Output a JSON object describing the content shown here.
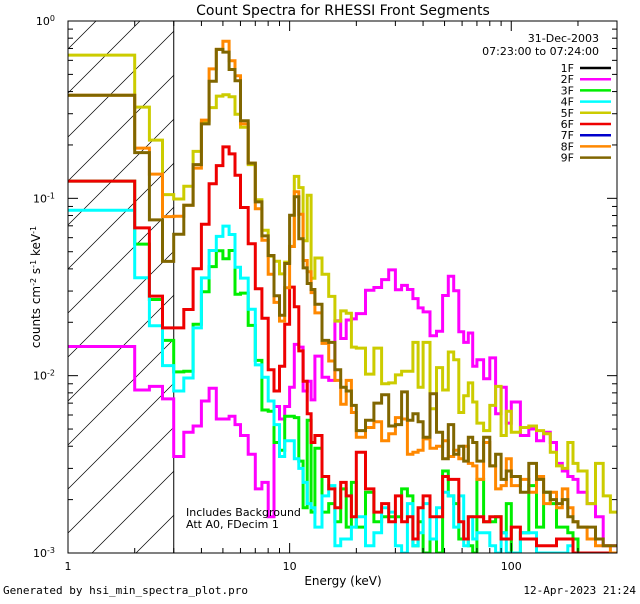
{
  "chart_data": {
    "type": "line",
    "title": "Count Spectra for RHESSI Front Segments",
    "xlabel": "Energy (keV)",
    "ylabel_base": "counts cm",
    "ylabel_exp1": "-2",
    "ylabel_mid": " s",
    "ylabel_exp2": "-1",
    "ylabel_tail": " keV",
    "ylabel_exp3": "-1",
    "xscale": "log",
    "yscale": "log",
    "xlim": [
      1,
      300
    ],
    "ylim": [
      0.001,
      1
    ],
    "x_ticks": [
      {
        "value": 1,
        "label": "1"
      },
      {
        "value": 10,
        "label": "10"
      },
      {
        "value": 100,
        "label": "100"
      }
    ],
    "y_ticks": [
      {
        "value": 0.001,
        "base": "10",
        "exp": "-3"
      },
      {
        "value": 0.01,
        "base": "10",
        "exp": "-2"
      },
      {
        "value": 0.1,
        "base": "10",
        "exp": "-1"
      },
      {
        "value": 1,
        "base": "10",
        "exp": "0"
      }
    ],
    "date": "31-Dec-2003",
    "time_range": "07:23:00 to 07:24:00",
    "annotation_lines": [
      "Includes Background",
      "Att A0, FDecim 1"
    ],
    "hatched_region_max_energy": 3,
    "energy_bins": [
      1.0,
      1.33,
      1.67,
      2.0,
      2.33,
      2.67,
      3.0,
      3.33,
      3.67,
      4.0,
      4.33,
      4.67,
      5.0,
      5.33,
      5.67,
      6.0,
      6.5,
      7.0,
      7.5,
      8.0,
      8.5,
      9.0,
      9.5,
      10.0,
      10.5,
      11.0,
      11.5,
      12.0,
      12.5,
      13.0,
      14.0,
      15.0,
      16.0,
      17.0,
      18.0,
      19.0,
      20.0,
      22.0,
      24.0,
      26.0,
      28.0,
      30.0,
      32.0,
      34.0,
      36.0,
      38.0,
      40.0,
      43.0,
      46.0,
      49.0,
      52.0,
      55.0,
      58.0,
      61.0,
      64.0,
      67.0,
      70.0,
      75.0,
      80.0,
      85.0,
      90.0,
      95.0,
      100.0,
      110.0,
      120.0,
      130.0,
      140.0,
      150.0,
      160.0,
      170.0,
      180.0,
      190.0,
      200.0,
      220.0,
      240.0,
      260.0,
      280.0,
      300.0
    ],
    "series": [
      {
        "name": "1F",
        "color": "#000000",
        "values": []
      },
      {
        "name": "2F",
        "color": "#ff00ff",
        "values": [
          0.0146,
          0.0146,
          0.0146,
          0.0083,
          0.0087,
          0.0074,
          0.0035,
          0.0048,
          0.0052,
          0.0072,
          0.0085,
          0.0057,
          0.0057,
          0.0059,
          0.0053,
          0.0046,
          0.0036,
          0.0023,
          0.0025,
          0.0016,
          0.0067,
          0.0057,
          0.0067,
          0.0086,
          0.015,
          0.0145,
          0.0082,
          0.0093,
          0.0073,
          0.0129,
          0.0098,
          0.0094,
          0.0204,
          0.0162,
          0.0206,
          0.0209,
          0.0224,
          0.0303,
          0.0314,
          0.0348,
          0.0395,
          0.0305,
          0.0323,
          0.0306,
          0.0272,
          0.0241,
          0.0229,
          0.0168,
          0.0178,
          0.0283,
          0.0364,
          0.0301,
          0.0177,
          0.0154,
          0.0174,
          0.0113,
          0.0123,
          0.0096,
          0.0126,
          0.0061,
          0.0086,
          0.0054,
          0.0071,
          0.0046,
          0.005,
          0.0043,
          0.0048,
          0.0042,
          0.0032,
          0.0029,
          0.0027,
          0.0026,
          0.0022,
          0.0019,
          0.0016,
          0.0011,
          0.0011
        ]
      },
      {
        "name": "3F",
        "color": "#00ee00",
        "values": [
          0.125,
          0.125,
          0.125,
          0.0552,
          0.0269,
          0.0158,
          0.0105,
          0.0106,
          0.0195,
          0.0297,
          0.0412,
          0.0506,
          0.0456,
          0.0508,
          0.0288,
          0.0292,
          0.0192,
          0.0122,
          0.0064,
          0.0063,
          0.0042,
          0.0038,
          0.0059,
          0.0059,
          0.0058,
          0.0033,
          0.0018,
          0.0056,
          0.0017,
          0.0039,
          0.0017,
          0.0019,
          0.0015,
          0.0023,
          0.0014,
          0.0025,
          0.0014,
          0.0022,
          0.0015,
          0.0016,
          0.0016,
          0.0016,
          0.0023,
          0.0021,
          0.0011,
          0.0015,
          0.001,
          0.0012,
          0.001,
          0.0029,
          0.0021,
          0.0019,
          0.0012,
          0.0012,
          0.0011,
          0.001,
          0.0026,
          0.0015,
          0.0015,
          0.0016,
          0.0013,
          0.0019,
          0.001,
          0.0013,
          0.0024,
          0.0014,
          0.0022,
          0.0019,
          0.0014,
          0.0014,
          0.0013,
          0.0012,
          0.001,
          0.001,
          0.001,
          0.001,
          0.001
        ]
      },
      {
        "name": "4F",
        "color": "#00ffff",
        "values": [
          0.0857,
          0.0857,
          0.0857,
          0.0357,
          0.0191,
          0.0114,
          0.0082,
          0.0097,
          0.0186,
          0.0356,
          0.0508,
          0.061,
          0.0697,
          0.0625,
          0.0409,
          0.0355,
          0.0237,
          0.0115,
          0.0098,
          0.0072,
          0.0053,
          0.0035,
          0.0043,
          0.0043,
          0.0034,
          0.003,
          0.0025,
          0.0019,
          0.0018,
          0.0014,
          0.0021,
          0.0024,
          0.0011,
          0.0012,
          0.0012,
          0.0014,
          0.0016,
          0.0011,
          0.0013,
          0.0018,
          0.0017,
          0.0011,
          0.001,
          0.0019,
          0.0011,
          0.0013,
          0.0019,
          0.0012,
          0.0018,
          0.0022,
          0.0021,
          0.0014,
          0.0021,
          0.0011,
          0.0016,
          0.0012,
          0.0013,
          0.0013,
          0.0011,
          0.001,
          0.0013,
          0.001,
          0.001,
          0.0013,
          0.0013,
          0.001,
          0.001,
          0.001,
          0.001,
          0.001,
          0.0011,
          0.001,
          0.001,
          0.001,
          0.001,
          0.001,
          0.001
        ]
      },
      {
        "name": "5F",
        "color": "#cccc00",
        "values": [
          0.642,
          0.642,
          0.642,
          0.327,
          0.213,
          0.105,
          0.0992,
          0.117,
          0.184,
          0.268,
          0.325,
          0.377,
          0.384,
          0.374,
          0.298,
          0.252,
          0.155,
          0.0982,
          0.066,
          0.0471,
          0.0442,
          0.0375,
          0.0437,
          0.0536,
          0.133,
          0.115,
          0.0577,
          0.104,
          0.0354,
          0.0461,
          0.0373,
          0.028,
          0.0203,
          0.0232,
          0.0225,
          0.0145,
          0.0143,
          0.0102,
          0.0143,
          0.009,
          0.0091,
          0.0101,
          0.0106,
          0.0106,
          0.0154,
          0.0086,
          0.0154,
          0.0065,
          0.0111,
          0.0083,
          0.0136,
          0.0123,
          0.0062,
          0.0077,
          0.0091,
          0.0071,
          0.0054,
          0.0049,
          0.0068,
          0.0087,
          0.0046,
          0.0063,
          0.0048,
          0.0051,
          0.0052,
          0.0049,
          0.0047,
          0.0037,
          0.0031,
          0.003,
          0.0042,
          0.0032,
          0.0029,
          0.0019,
          0.0032,
          0.0021,
          0.0017
        ]
      },
      {
        "name": "6F",
        "color": "#ee0000",
        "values": [
          0.125,
          0.125,
          0.125,
          0.0681,
          0.0281,
          0.0186,
          0.0186,
          0.0236,
          0.0401,
          0.0715,
          0.121,
          0.153,
          0.195,
          0.178,
          0.135,
          0.0888,
          0.0555,
          0.0309,
          0.0211,
          0.0108,
          0.0082,
          0.0113,
          0.0195,
          0.0316,
          0.0245,
          0.0138,
          0.0093,
          0.0061,
          0.0042,
          0.0046,
          0.0027,
          0.0023,
          0.0018,
          0.0025,
          0.0021,
          0.0016,
          0.0037,
          0.0023,
          0.0017,
          0.0019,
          0.0015,
          0.0021,
          0.0015,
          0.0016,
          0.0012,
          0.0018,
          0.0021,
          0.0016,
          0.0016,
          0.0027,
          0.0026,
          0.0026,
          0.0015,
          0.0012,
          0.0016,
          0.0016,
          0.0016,
          0.0015,
          0.0016,
          0.0016,
          0.0012,
          0.0012,
          0.0014,
          0.0012,
          0.0012,
          0.0011,
          0.0011,
          0.0011,
          0.0012,
          0.0012,
          0.0012,
          0.001,
          0.001,
          0.001,
          0.001,
          0.001,
          0.001
        ]
      },
      {
        "name": "7F",
        "color": "#0000cc",
        "values": []
      },
      {
        "name": "8F",
        "color": "#ff8800",
        "values": [
          0.381,
          0.381,
          0.381,
          0.192,
          0.137,
          0.0789,
          0.0792,
          0.0914,
          0.148,
          0.276,
          0.537,
          0.692,
          0.768,
          0.597,
          0.491,
          0.263,
          0.158,
          0.0873,
          0.0581,
          0.0373,
          0.0259,
          0.0203,
          0.0313,
          0.0535,
          0.109,
          0.0814,
          0.0446,
          0.0385,
          0.0294,
          0.0226,
          0.0152,
          0.0121,
          0.0094,
          0.0069,
          0.0094,
          0.0062,
          0.0045,
          0.0051,
          0.0055,
          0.0043,
          0.0047,
          0.0058,
          0.0057,
          0.0036,
          0.0037,
          0.0038,
          0.0044,
          0.0039,
          0.004,
          0.0043,
          0.0035,
          0.0038,
          0.0034,
          0.004,
          0.0032,
          0.0031,
          0.0026,
          0.0042,
          0.0031,
          0.0023,
          0.0024,
          0.0034,
          0.0024,
          0.0026,
          0.0022,
          0.0027,
          0.0019,
          0.0022,
          0.0018,
          0.0023,
          0.0018,
          0.0015,
          0.0014,
          0.0012,
          0.0011,
          0.0011,
          0.001
        ]
      },
      {
        "name": "9F",
        "color": "#806600",
        "values": [
          0.381,
          0.381,
          0.381,
          0.181,
          0.0756,
          0.0441,
          0.0627,
          0.0913,
          0.155,
          0.263,
          0.457,
          0.692,
          0.668,
          0.533,
          0.46,
          0.274,
          0.158,
          0.0955,
          0.0614,
          0.0476,
          0.0282,
          0.0219,
          0.0429,
          0.0802,
          0.102,
          0.0592,
          0.0405,
          0.0331,
          0.0306,
          0.0253,
          0.0158,
          0.0154,
          0.0108,
          0.0086,
          0.0082,
          0.0068,
          0.0049,
          0.0056,
          0.007,
          0.0078,
          0.0052,
          0.0053,
          0.0081,
          0.0056,
          0.0061,
          0.0055,
          0.0045,
          0.0079,
          0.0048,
          0.0034,
          0.0053,
          0.0036,
          0.004,
          0.0033,
          0.0045,
          0.0042,
          0.0033,
          0.0045,
          0.0031,
          0.0036,
          0.0026,
          0.0029,
          0.0027,
          0.0022,
          0.0032,
          0.0026,
          0.0022,
          0.002,
          0.0019,
          0.002,
          0.0016,
          0.0015,
          0.0014,
          0.0014,
          0.0012,
          0.0011,
          0.0011
        ]
      }
    ]
  },
  "footer": {
    "left": "Generated by hsi_min_spectra_plot.pro",
    "right": "12-Apr-2023 21:24"
  }
}
